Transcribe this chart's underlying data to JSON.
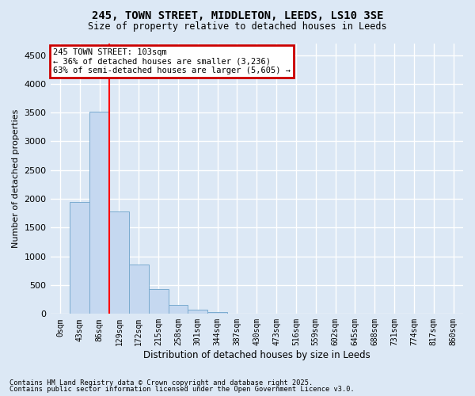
{
  "title1": "245, TOWN STREET, MIDDLETON, LEEDS, LS10 3SE",
  "title2": "Size of property relative to detached houses in Leeds",
  "xlabel": "Distribution of detached houses by size in Leeds",
  "ylabel": "Number of detached properties",
  "bar_labels": [
    "0sqm",
    "43sqm",
    "86sqm",
    "129sqm",
    "172sqm",
    "215sqm",
    "258sqm",
    "301sqm",
    "344sqm",
    "387sqm",
    "430sqm",
    "473sqm",
    "516sqm",
    "559sqm",
    "602sqm",
    "645sqm",
    "688sqm",
    "731sqm",
    "774sqm",
    "817sqm",
    "860sqm"
  ],
  "bar_values": [
    5,
    1940,
    3520,
    1780,
    860,
    430,
    160,
    70,
    30,
    10,
    5,
    3,
    2,
    1,
    1,
    0,
    0,
    0,
    0,
    0,
    0
  ],
  "bar_color": "#c5d8f0",
  "bar_edge_color": "#7aabcf",
  "ylim": [
    0,
    4700
  ],
  "yticks": [
    0,
    500,
    1000,
    1500,
    2000,
    2500,
    3000,
    3500,
    4000,
    4500
  ],
  "red_line_x": 2.5,
  "annotation_title": "245 TOWN STREET: 103sqm",
  "annotation_line1": "← 36% of detached houses are smaller (3,236)",
  "annotation_line2": "63% of semi-detached houses are larger (5,605) →",
  "footnote1": "Contains HM Land Registry data © Crown copyright and database right 2025.",
  "footnote2": "Contains public sector information licensed under the Open Government Licence v3.0.",
  "bg_color": "#dce8f5",
  "plot_bg_color": "#dce8f5",
  "grid_color": "#ffffff",
  "annotation_box_color": "#cc0000"
}
